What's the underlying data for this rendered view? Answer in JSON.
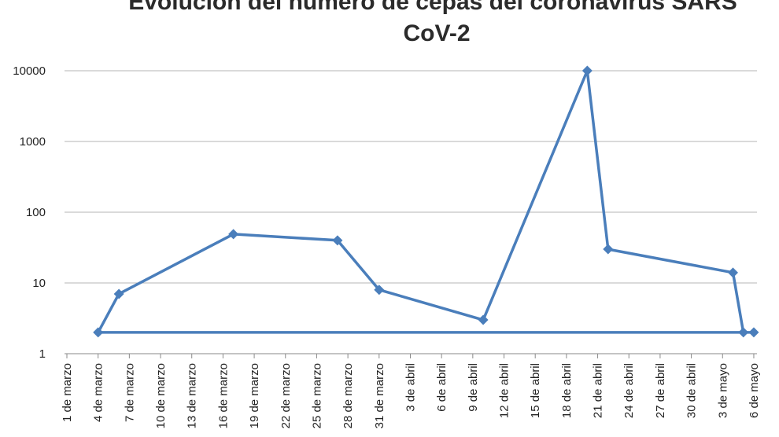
{
  "chart_data": {
    "type": "line",
    "title_lines": [
      "Evolución del número de cepas del coronavirus SARS",
      "CoV-2"
    ],
    "xlabel": "",
    "ylabel": "",
    "y_scale": "log",
    "ylim": [
      1,
      10000
    ],
    "y_ticks": [
      "1",
      "10",
      "100",
      "1000",
      "10000"
    ],
    "grid": true,
    "legend": "none",
    "x_tick_labels": [
      "1 de marzo",
      "4 de marzo",
      "7 de marzo",
      "10 de marzo",
      "13 de marzo",
      "16 de marzo",
      "19 de marzo",
      "22 de marzo",
      "25 de marzo",
      "28 de marzo",
      "31 de marzo",
      "3 de abril",
      "6 de abril",
      "9 de abril",
      "12 de abril",
      "15 de abril",
      "18 de abril",
      "21 de abril",
      "24 de abril",
      "27 de abril",
      "30 de abril",
      "3 de mayo",
      "6 de mayo"
    ],
    "series": [
      {
        "color": "#4a7ebb",
        "points": [
          {
            "x": "4 de marzo",
            "y": 2
          },
          {
            "x": "6 de marzo",
            "y": 7
          },
          {
            "x": "17 de marzo",
            "y": 49
          },
          {
            "x": "27 de marzo",
            "y": 40
          },
          {
            "x": "31 de marzo",
            "y": 8
          },
          {
            "x": "10 de abril",
            "y": 3
          },
          {
            "x": "20 de abril",
            "y": 10000
          },
          {
            "x": "22 de abril",
            "y": 30
          },
          {
            "x": "4 de mayo",
            "y": 14
          },
          {
            "x": "5 de mayo",
            "y": 2
          },
          {
            "x": "4 de marzo",
            "y": 2
          },
          {
            "x": "6 de mayo",
            "y": 2
          }
        ]
      }
    ]
  }
}
